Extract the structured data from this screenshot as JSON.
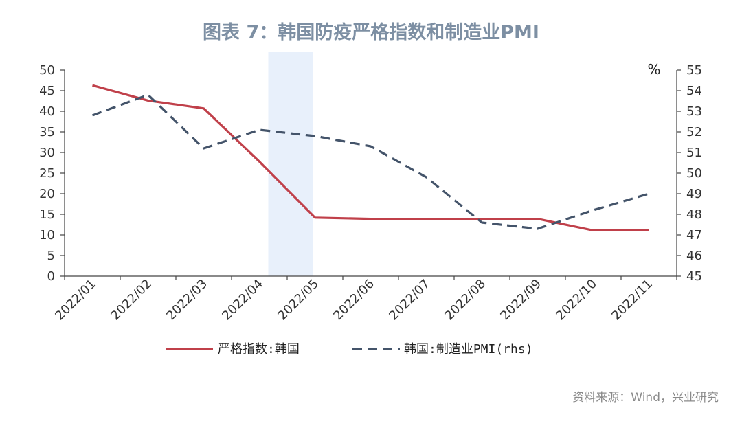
{
  "colors": {
    "series1": "#c0404a",
    "series2": "#44546a",
    "shade": "#e8f0fb",
    "axis": "#444444",
    "title": "#7d8fa3"
  },
  "chart_data": {
    "type": "line",
    "title": "图表 7：韩国防疫严格指数和制造业PMI",
    "categories": [
      "2022/01",
      "2022/02",
      "2022/03",
      "2022/04",
      "2022/05",
      "2022/06",
      "2022/07",
      "2022/08",
      "2022/09",
      "2022/10",
      "2022/11"
    ],
    "series": [
      {
        "name": "严格指数:韩国",
        "axis": "left",
        "style": "solid",
        "color": "#c0404a",
        "values": [
          46.3,
          42.6,
          40.7,
          27.8,
          14.2,
          13.9,
          13.9,
          13.9,
          13.9,
          11.1,
          11.1
        ]
      },
      {
        "name": "韩国:制造业PMI(rhs)",
        "axis": "right",
        "style": "dashed",
        "color": "#44546a",
        "values": [
          52.8,
          53.8,
          51.2,
          52.1,
          51.8,
          51.3,
          49.8,
          47.6,
          47.3,
          48.2,
          49.0
        ]
      }
    ],
    "yleft": {
      "min": 0,
      "max": 50,
      "step": 5
    },
    "yright": {
      "min": 45,
      "max": 55,
      "step": 1,
      "unit": "%"
    },
    "shaded_range": [
      "2022/04",
      "2022/05"
    ],
    "grid": false,
    "legend_position": "bottom"
  },
  "source": "资料来源：Wind，兴业研究"
}
